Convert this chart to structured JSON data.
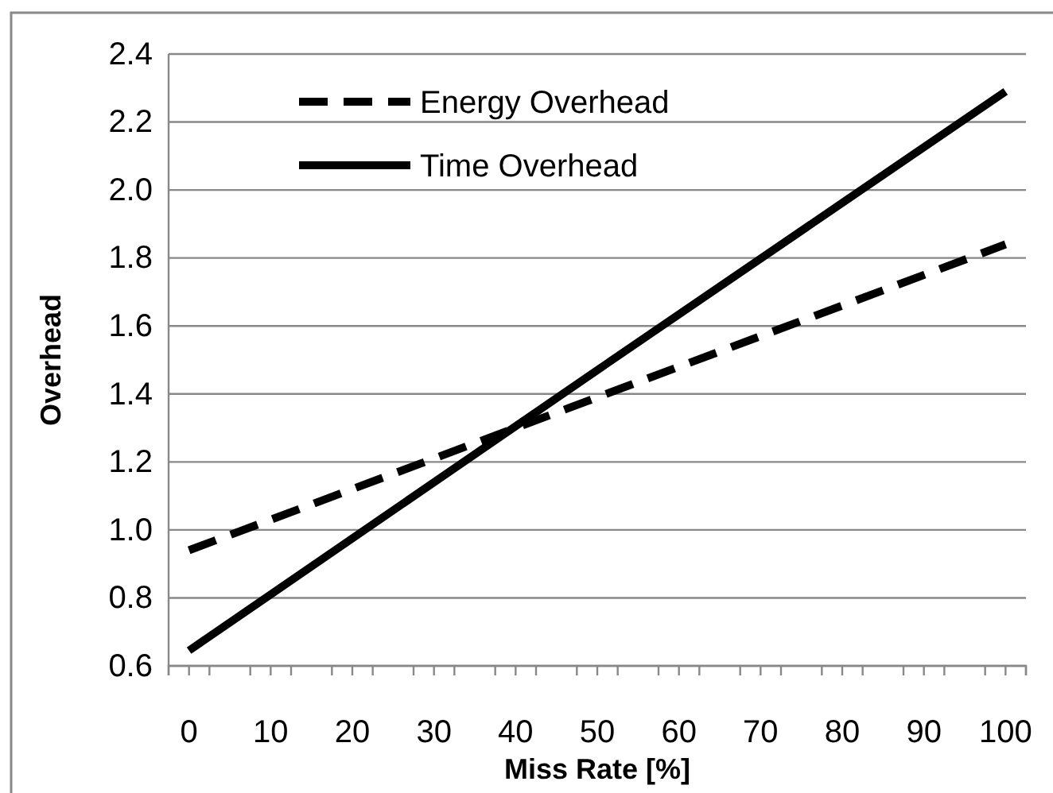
{
  "chart_data": {
    "type": "line",
    "xlabel": "Miss Rate [%]",
    "ylabel": "Overhead",
    "xlim": [
      -2.5,
      102.5
    ],
    "xticks": [
      {
        "value": -2.5,
        "label": null
      },
      0,
      {
        "value": 2.5,
        "label": null
      },
      {
        "value": 7.5,
        "label": null
      },
      10,
      {
        "value": 12.5,
        "label": null
      },
      {
        "value": 17.5,
        "label": null
      },
      20,
      {
        "value": 22.5,
        "label": null
      },
      {
        "value": 27.5,
        "label": null
      },
      30,
      {
        "value": 32.5,
        "label": null
      },
      {
        "value": 37.5,
        "label": null
      },
      40,
      {
        "value": 42.5,
        "label": null
      },
      {
        "value": 47.5,
        "label": null
      },
      50,
      {
        "value": 52.5,
        "label": null
      },
      {
        "value": 57.5,
        "label": null
      },
      60,
      {
        "value": 62.5,
        "label": null
      },
      {
        "value": 67.5,
        "label": null
      },
      70,
      {
        "value": 72.5,
        "label": null
      },
      {
        "value": 77.5,
        "label": null
      },
      80,
      {
        "value": 82.5,
        "label": null
      },
      {
        "value": 87.5,
        "label": null
      },
      90,
      {
        "value": 92.5,
        "label": null
      },
      {
        "value": 97.5,
        "label": null
      },
      100,
      {
        "value": 102.5,
        "label": null
      }
    ],
    "ylim": [
      0.6,
      2.4
    ],
    "yticks": [
      {
        "value": 0.6,
        "label": "0.6"
      },
      {
        "value": 0.8,
        "label": "0.8"
      },
      {
        "value": 1.0,
        "label": "1.0"
      },
      {
        "value": 1.2,
        "label": "1.2"
      },
      {
        "value": 1.4,
        "label": "1.4"
      },
      {
        "value": 1.6,
        "label": "1.6"
      },
      {
        "value": 1.8,
        "label": "1.8"
      },
      {
        "value": 2.0,
        "label": "2.0"
      },
      {
        "value": 2.2,
        "label": "2.2"
      },
      {
        "value": 2.4,
        "label": "2.4"
      }
    ],
    "x": [
      0,
      50,
      100
    ],
    "grid": "y",
    "legend": "top left",
    "marker": "none",
    "series": [
      {
        "name": "Energy Overhead",
        "color": "#000000",
        "line_style": "dashed",
        "values": [
          0.94,
          1.39,
          1.84
        ]
      },
      {
        "name": "Time Overhead",
        "color": "#000000",
        "line_style": "solid",
        "values": [
          0.645,
          1.47,
          2.29
        ]
      }
    ]
  }
}
